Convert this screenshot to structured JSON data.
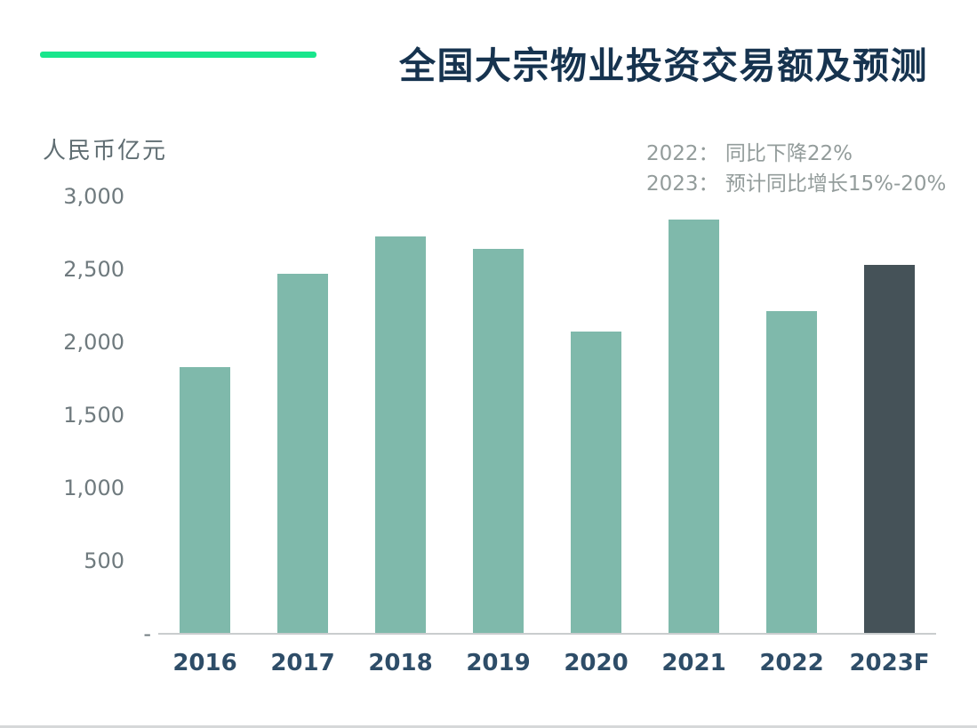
{
  "header": {
    "title": "全国大宗物业投资交易额及预测"
  },
  "colors": {
    "accent_green_line": "#19e68c",
    "bar_default": "#7fb9ab",
    "bar_forecast": "#455258",
    "title_text": "#16334f",
    "x_label_text": "#2e4d68",
    "y_tick_text": "#6f7a7e",
    "unit_label_text": "#5f6d72",
    "annotation_text": "#939c9b",
    "axis_line": "#c9cdce",
    "bottom_rule": "#d6d8d9"
  },
  "chart_data": {
    "type": "bar",
    "title": "全国大宗物业投资交易额及预测",
    "unit_label": "人民币亿元",
    "xlabel": "",
    "ylabel": "人民币亿元",
    "categories": [
      "2016",
      "2017",
      "2018",
      "2019",
      "2020",
      "2021",
      "2022",
      "2023F"
    ],
    "values": [
      1825,
      2470,
      2720,
      2640,
      2070,
      2840,
      2210,
      2530
    ],
    "forecast_category": "2023F",
    "ylim": [
      0,
      3000
    ],
    "grid": "off",
    "legend": "none",
    "y_ticks": [
      {
        "value": 3000,
        "label": "3,000"
      },
      {
        "value": 2500,
        "label": "2,500"
      },
      {
        "value": 2000,
        "label": "2,000"
      },
      {
        "value": 1500,
        "label": "1,500"
      },
      {
        "value": 1000,
        "label": "1,000"
      },
      {
        "value": 500,
        "label": "500"
      },
      {
        "value": 0,
        "label": "-"
      }
    ],
    "annotations": [
      "2022：  同比下降22%",
      "2023：  预计同比增长15%-20%"
    ]
  }
}
